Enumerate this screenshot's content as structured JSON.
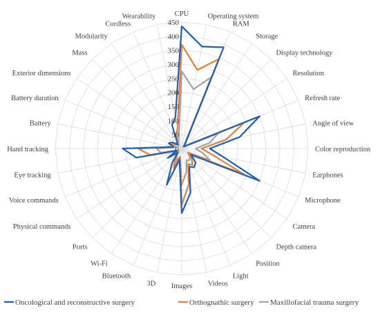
{
  "chart_data": {
    "type": "radar",
    "title": "",
    "categories": [
      "CPU",
      "Operating system",
      "RAM",
      "Storage",
      "Display technology",
      "Resolution",
      "Refresh rate",
      "Angle of view",
      "Color reproduction",
      "Earphones",
      "Microphone",
      "Camera",
      "Depth camera",
      "Position",
      "Light",
      "Videos",
      "Images",
      "3D",
      "Bluetooth",
      "Wi-Fi",
      "Ports",
      "Physical commands",
      "Voice commands",
      "Eye tracking",
      "Hand tracking",
      "Battery",
      "Battery duration",
      "Exterior dimensions",
      "Mass",
      "Modularity",
      "Cordless",
      "Wearability"
    ],
    "rlim": [
      0,
      450
    ],
    "ticks": [
      0,
      50,
      100,
      150,
      200,
      250,
      300,
      350,
      400,
      450
    ],
    "grid": true,
    "legend_position": "bottom",
    "series": [
      {
        "name": "Oncological and reconstructive surgery",
        "color": "#1f5fbf",
        "values": [
          435,
          370,
          390,
          25,
          10,
          20,
          300,
          210,
          100,
          150,
          300,
          40,
          70,
          80,
          70,
          160,
          230,
          40,
          140,
          60,
          20,
          60,
          20,
          165,
          210,
          30,
          50,
          40,
          20,
          30,
          90,
          115
        ]
      },
      {
        "name": "Orthognathic surgery",
        "color": "#ed7d31",
        "values": [
          370,
          285,
          345,
          25,
          10,
          20,
          240,
          160,
          70,
          110,
          240,
          30,
          50,
          70,
          60,
          130,
          200,
          30,
          75,
          40,
          20,
          40,
          20,
          115,
          155,
          30,
          40,
          30,
          20,
          30,
          50,
          75
        ]
      },
      {
        "name": "Maxillofacial trauma surgery",
        "color": "#a5a5a5",
        "values": [
          275,
          215,
          275,
          20,
          10,
          15,
          140,
          100,
          50,
          75,
          110,
          25,
          40,
          50,
          45,
          85,
          130,
          30,
          50,
          30,
          15,
          40,
          15,
          75,
          90,
          20,
          30,
          30,
          15,
          20,
          30,
          50
        ]
      }
    ]
  }
}
